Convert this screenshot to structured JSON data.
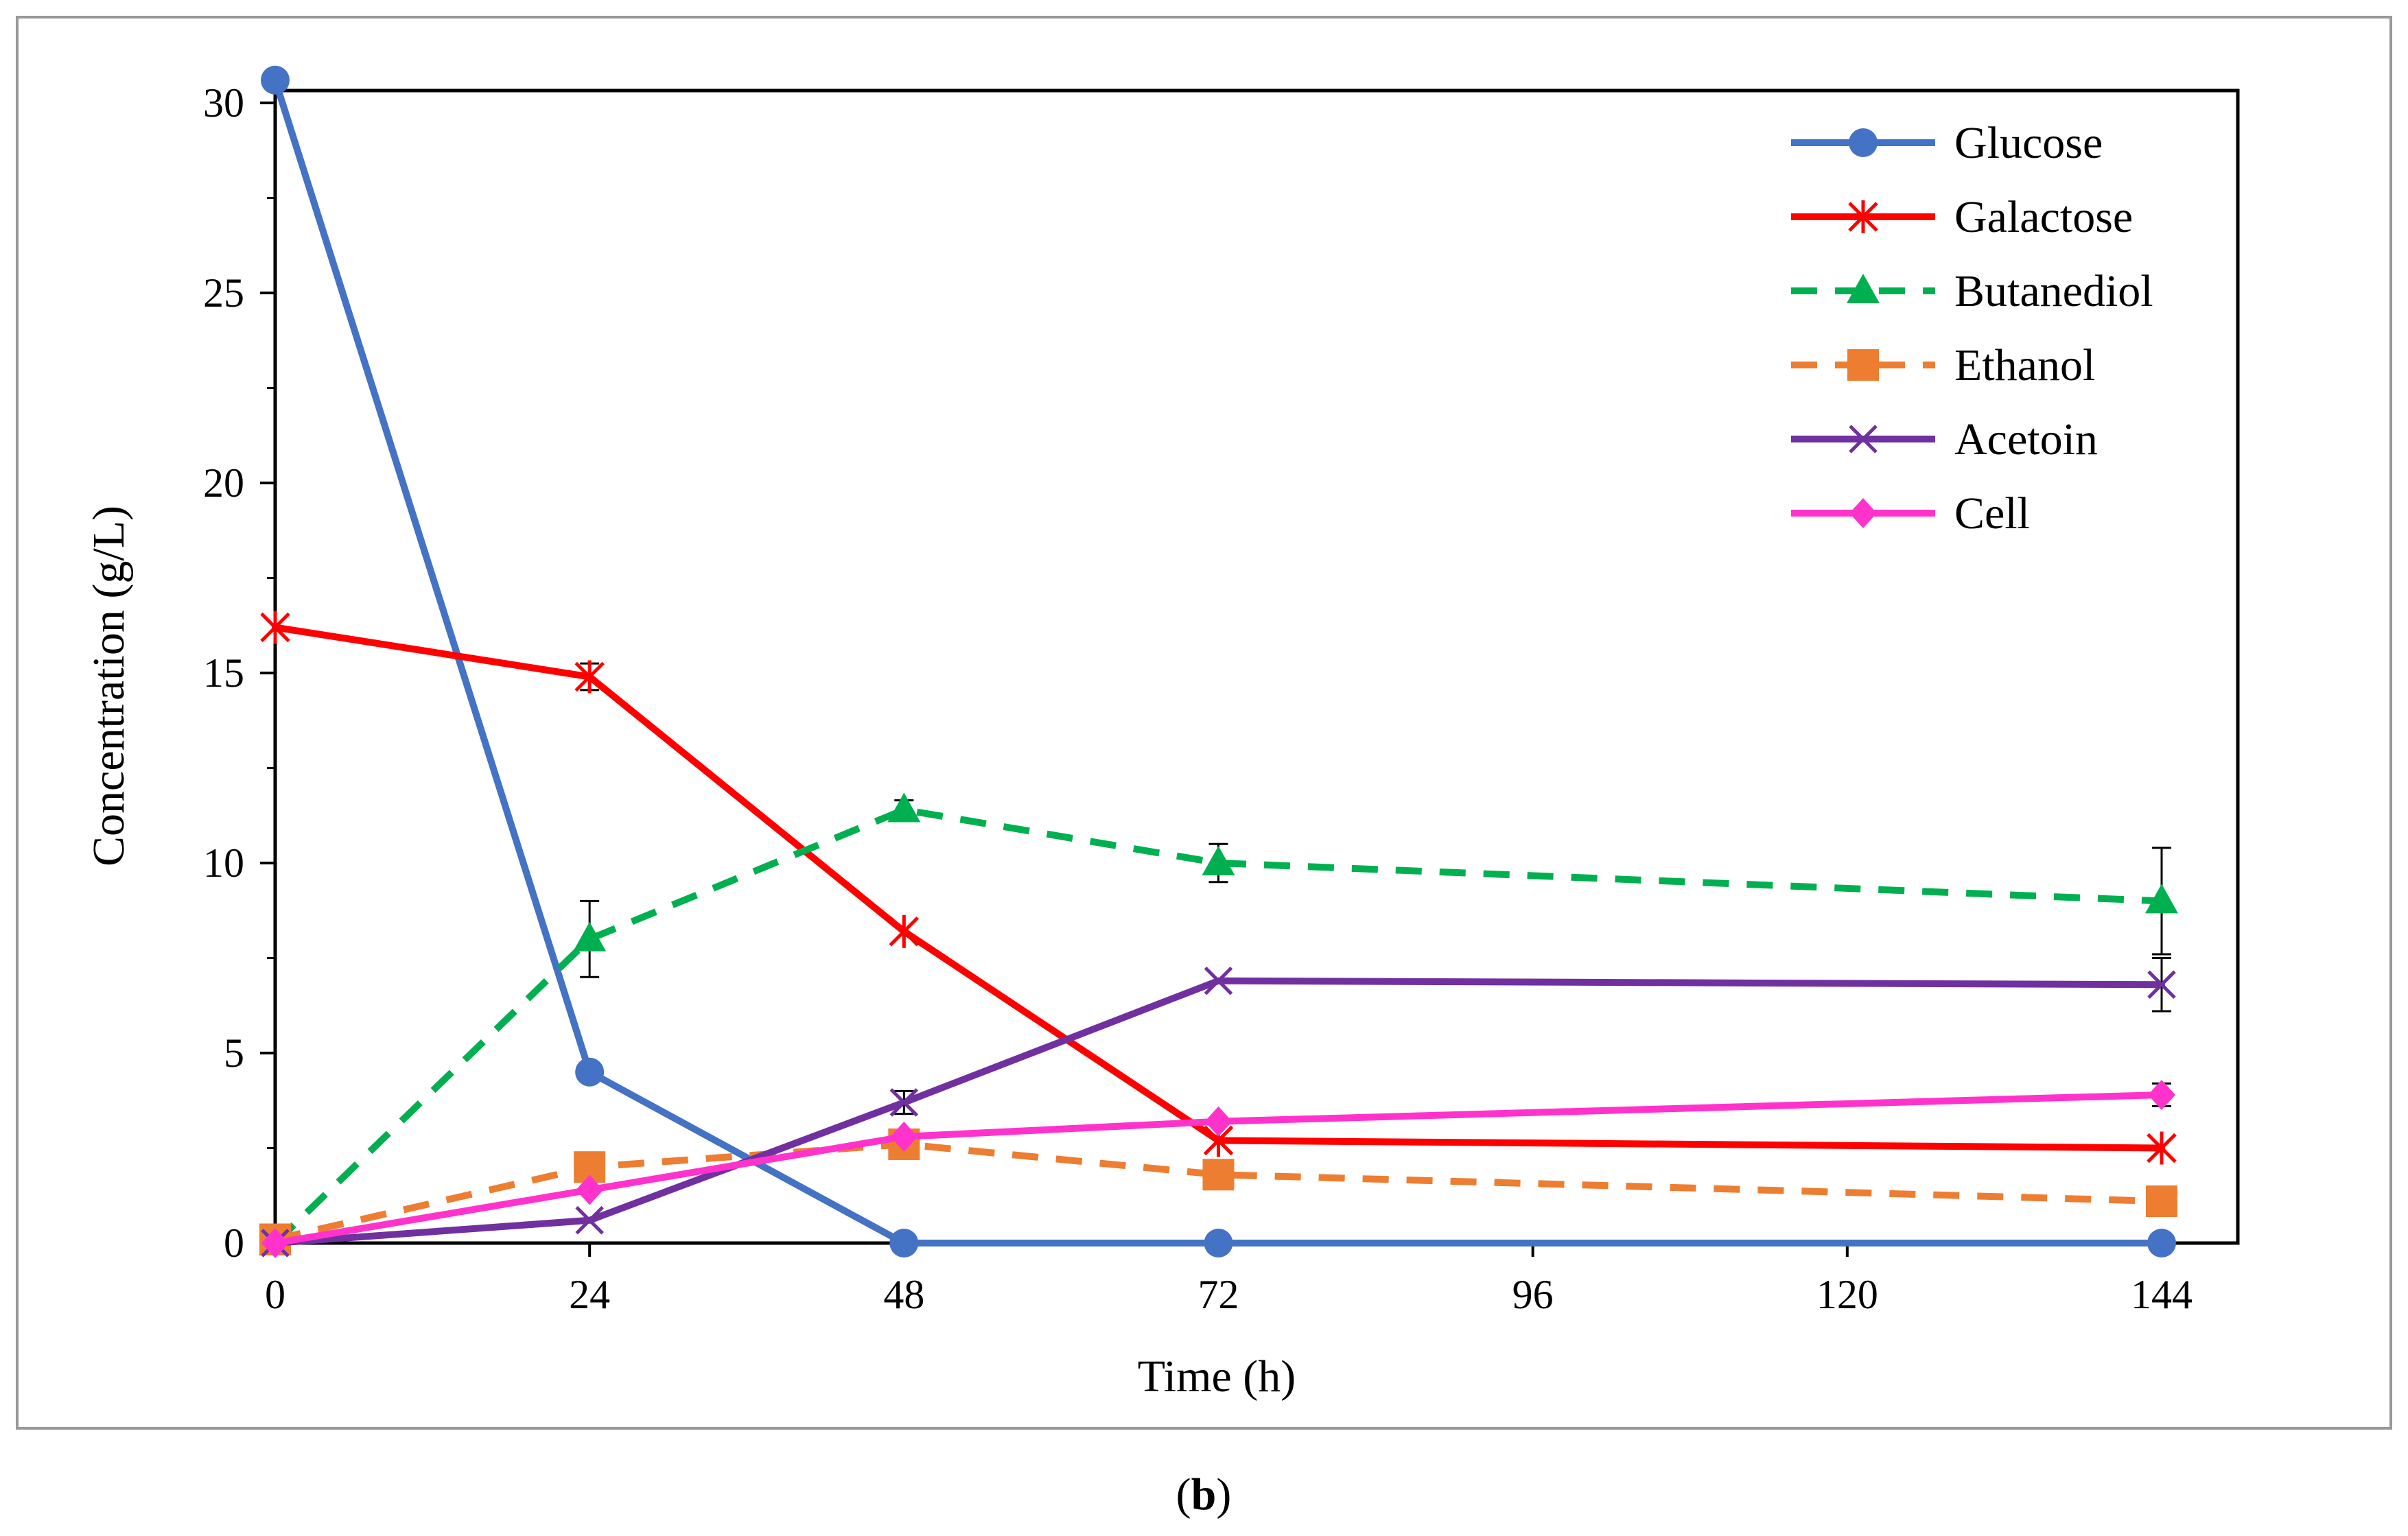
{
  "chart_data": {
    "type": "line",
    "title": "",
    "xlabel": "Time (h)",
    "ylabel": "Concentration (g/L)",
    "xlim": [
      0,
      144
    ],
    "ylim": [
      0,
      30
    ],
    "xticks": [
      0,
      24,
      48,
      72,
      96,
      120,
      144
    ],
    "yticks": [
      0,
      5,
      10,
      15,
      20,
      25,
      30
    ],
    "x": [
      0,
      24,
      48,
      72,
      144
    ],
    "legend_position": "top-right",
    "series": [
      {
        "name": "Glucose",
        "color": "#4472C4",
        "dash": "solid",
        "marker": "circle",
        "values": [
          30.6,
          4.5,
          0.0,
          0.0,
          0.0
        ],
        "errors": [
          0,
          0,
          0,
          0,
          0
        ]
      },
      {
        "name": "Galactose",
        "color": "#FF0000",
        "dash": "solid",
        "marker": "asterisk",
        "values": [
          16.2,
          14.9,
          8.2,
          2.7,
          2.5
        ],
        "errors": [
          0,
          0.35,
          0,
          0,
          0
        ]
      },
      {
        "name": "Butanediol",
        "color": "#00B050",
        "dash": "dashed",
        "marker": "triangle",
        "values": [
          0.0,
          8.0,
          11.4,
          10.0,
          9.0
        ],
        "errors": [
          0,
          1.0,
          0.25,
          0.5,
          1.4
        ]
      },
      {
        "name": "Ethanol",
        "color": "#ED7D31",
        "dash": "dashed",
        "marker": "square",
        "values": [
          0.1,
          2.0,
          2.6,
          1.8,
          1.1
        ],
        "errors": [
          0,
          0,
          0,
          0,
          0
        ]
      },
      {
        "name": "Acetoin",
        "color": "#7030A0",
        "dash": "solid",
        "marker": "x",
        "values": [
          0.0,
          0.6,
          3.7,
          6.9,
          6.8
        ],
        "errors": [
          0,
          0,
          0.3,
          0,
          0.7
        ]
      },
      {
        "name": "Cell",
        "color": "#FF33CC",
        "dash": "solid",
        "marker": "diamond",
        "values": [
          0.0,
          1.4,
          2.8,
          3.2,
          3.9
        ],
        "errors": [
          0,
          0,
          0,
          0,
          0.3
        ]
      }
    ]
  },
  "caption": {
    "open": "(",
    "bold": "b",
    "close": ")"
  }
}
